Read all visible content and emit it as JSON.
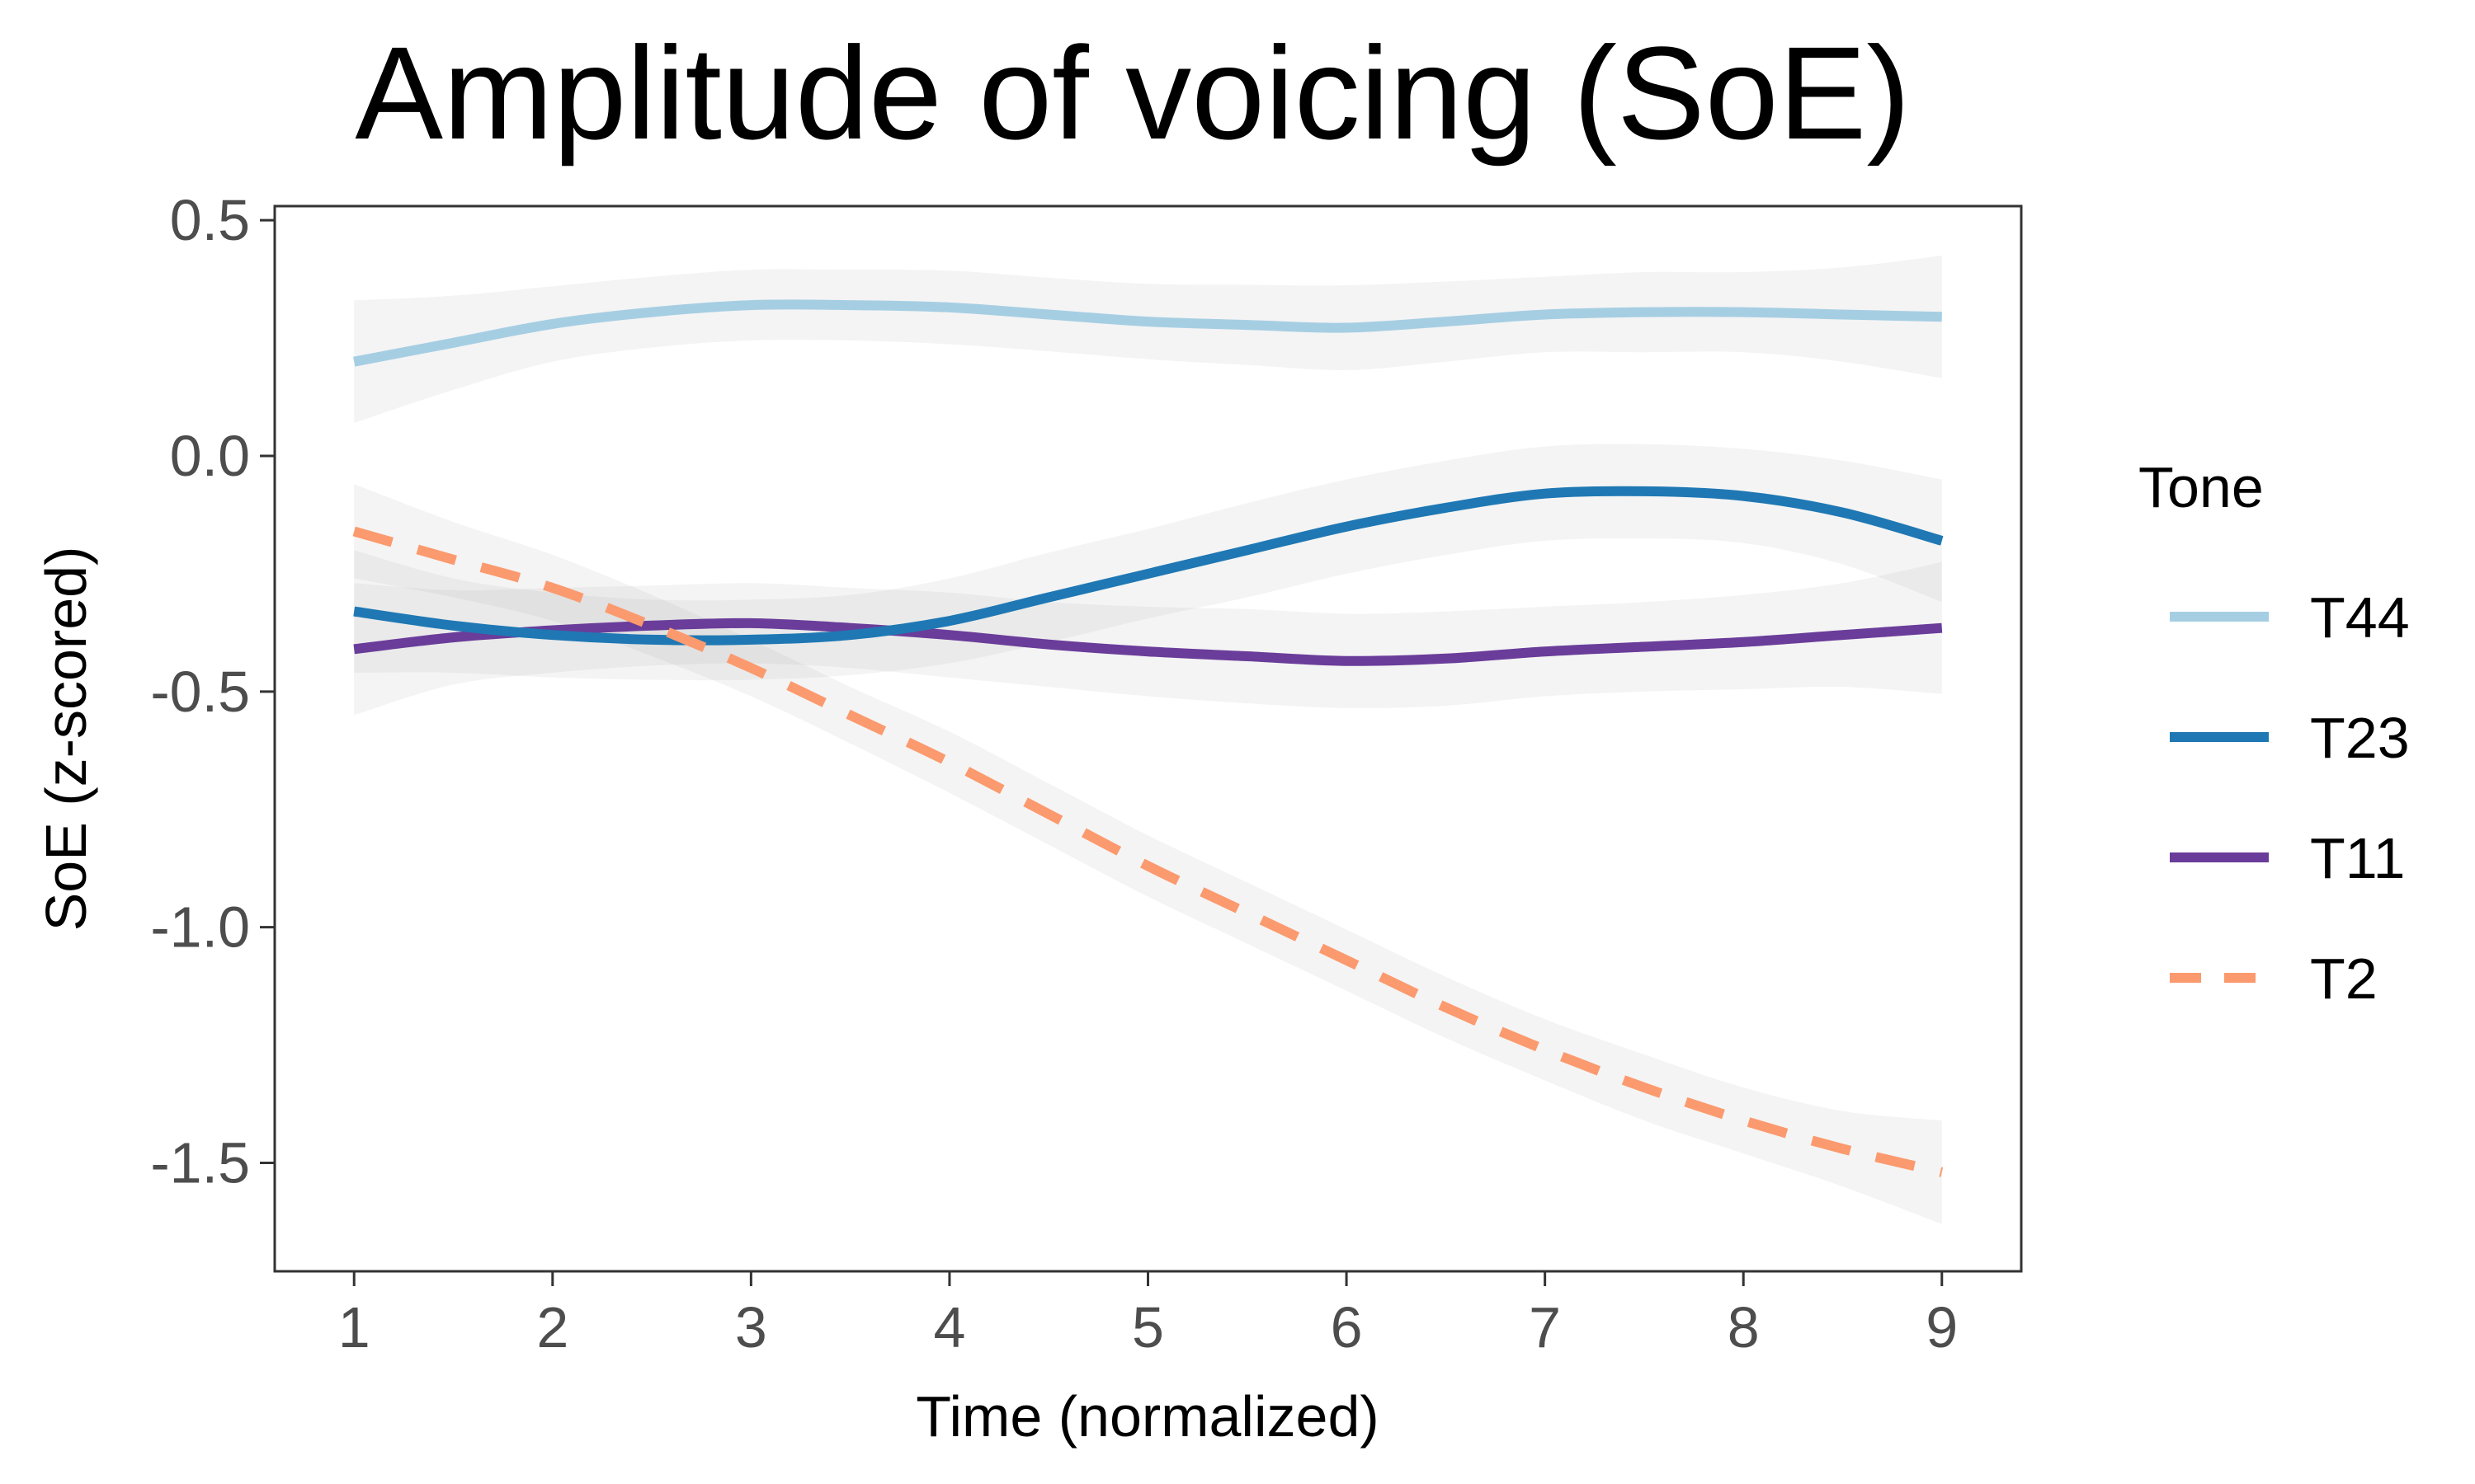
{
  "chart_data": {
    "type": "line",
    "title": "Amplitude of voicing (SoE)",
    "xlabel": "Time (normalized)",
    "ylabel": "SoE (z-scored)",
    "xlim": [
      0.6,
      9.4
    ],
    "ylim": [
      -1.73,
      0.53
    ],
    "xticks": [
      1,
      2,
      3,
      4,
      5,
      6,
      7,
      8,
      9
    ],
    "yticks": [
      0.5,
      0.0,
      -0.5,
      -1.0,
      -1.5
    ],
    "ytick_labels": [
      "0.5",
      "0.0",
      "-0.5",
      "-1.0",
      "-1.5"
    ],
    "grid": false,
    "legend": {
      "title": "Tone",
      "position": "right"
    },
    "x": [
      1,
      1.5,
      2,
      2.5,
      3,
      3.5,
      4,
      4.5,
      5,
      5.5,
      6,
      6.5,
      7,
      7.5,
      8,
      8.5,
      9
    ],
    "series": [
      {
        "name": "T44",
        "color": "#a6cee3",
        "dash": "solid",
        "values": [
          0.2,
          0.24,
          0.28,
          0.305,
          0.32,
          0.32,
          0.315,
          0.3,
          0.285,
          0.278,
          0.272,
          0.285,
          0.3,
          0.305,
          0.305,
          0.3,
          0.295
        ],
        "ci_halfwidth": [
          0.13,
          0.1,
          0.08,
          0.075,
          0.075,
          0.075,
          0.078,
          0.078,
          0.08,
          0.085,
          0.09,
          0.085,
          0.08,
          0.085,
          0.085,
          0.1,
          0.13
        ]
      },
      {
        "name": "T23",
        "color": "#1f78b4",
        "dash": "solid",
        "values": [
          -0.33,
          -0.36,
          -0.38,
          -0.39,
          -0.39,
          -0.38,
          -0.35,
          -0.3,
          -0.25,
          -0.2,
          -0.15,
          -0.11,
          -0.08,
          -0.075,
          -0.085,
          -0.12,
          -0.18
        ],
        "ci_halfwidth": [
          0.13,
          0.1,
          0.09,
          0.085,
          0.085,
          0.085,
          0.09,
          0.095,
          0.095,
          0.1,
          0.1,
          0.1,
          0.1,
          0.1,
          0.1,
          0.11,
          0.13
        ]
      },
      {
        "name": "T11",
        "color": "#6a3d9a",
        "dash": "solid",
        "values": [
          -0.41,
          -0.385,
          -0.37,
          -0.36,
          -0.355,
          -0.365,
          -0.38,
          -0.4,
          -0.415,
          -0.425,
          -0.435,
          -0.43,
          -0.415,
          -0.405,
          -0.395,
          -0.38,
          -0.365
        ],
        "ci_halfwidth": [
          0.14,
          0.1,
          0.09,
          0.085,
          0.085,
          0.085,
          0.09,
          0.09,
          0.095,
          0.1,
          0.1,
          0.1,
          0.095,
          0.095,
          0.1,
          0.11,
          0.14
        ]
      },
      {
        "name": "T2",
        "color": "#fb9a6e",
        "dash": "dashed",
        "values": [
          -0.16,
          -0.22,
          -0.28,
          -0.36,
          -0.45,
          -0.55,
          -0.65,
          -0.76,
          -0.87,
          -0.97,
          -1.07,
          -1.17,
          -1.26,
          -1.34,
          -1.41,
          -1.47,
          -1.52
        ],
        "ci_halfwidth": [
          0.1,
          0.08,
          0.07,
          0.065,
          0.06,
          0.06,
          0.065,
          0.065,
          0.065,
          0.065,
          0.065,
          0.065,
          0.065,
          0.07,
          0.07,
          0.08,
          0.11
        ]
      }
    ]
  }
}
